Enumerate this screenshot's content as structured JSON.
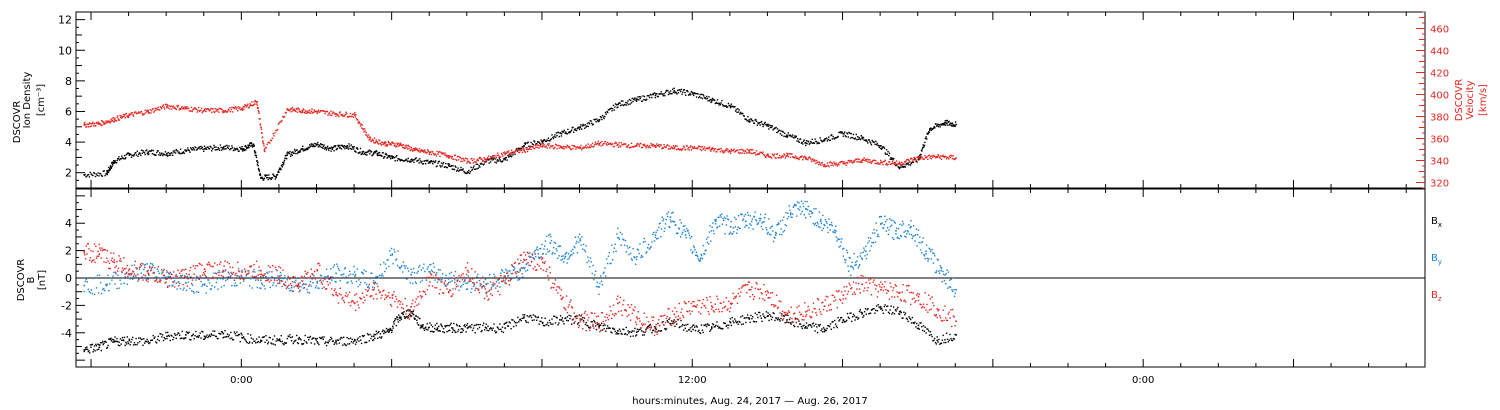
{
  "chart_data": [
    {
      "type": "scatter",
      "panel": "top",
      "ylabel_lines": [
        "DSCOVR",
        "Ion Density",
        "[cm⁻³]"
      ],
      "y2label_lines": [
        "DSCOVR",
        "Velocity",
        "[km/s]"
      ],
      "ylim": [
        1,
        12.5
      ],
      "y2lim": [
        315,
        475
      ],
      "yticks": [
        2,
        4,
        6,
        8,
        10,
        12
      ],
      "y2ticks": [
        320,
        340,
        360,
        380,
        400,
        420,
        440,
        460
      ],
      "series": [
        {
          "color": "#000000",
          "axis": "left",
          "points": [
            [
              -4.2,
              1.9
            ],
            [
              -3.6,
              2.0
            ],
            [
              -3.4,
              2.8
            ],
            [
              -3.0,
              3.2
            ],
            [
              -2.5,
              3.4
            ],
            [
              -2.0,
              3.3
            ],
            [
              -1.5,
              3.5
            ],
            [
              -1.0,
              3.6
            ],
            [
              -0.5,
              3.7
            ],
            [
              0.0,
              3.6
            ],
            [
              0.3,
              3.9
            ],
            [
              0.5,
              1.7
            ],
            [
              0.9,
              1.8
            ],
            [
              1.2,
              3.2
            ],
            [
              1.6,
              3.6
            ],
            [
              2.0,
              3.9
            ],
            [
              2.4,
              3.6
            ],
            [
              2.8,
              3.8
            ],
            [
              3.2,
              3.4
            ],
            [
              3.6,
              3.3
            ],
            [
              4.0,
              3.0
            ],
            [
              4.5,
              2.9
            ],
            [
              5.0,
              2.7
            ],
            [
              5.5,
              2.5
            ],
            [
              6.0,
              2.1
            ],
            [
              6.5,
              2.8
            ],
            [
              7.0,
              2.9
            ],
            [
              7.5,
              3.8
            ],
            [
              8.0,
              4.1
            ],
            [
              8.5,
              4.6
            ],
            [
              9.0,
              5.0
            ],
            [
              9.5,
              5.5
            ],
            [
              10.0,
              6.5
            ],
            [
              10.5,
              6.8
            ],
            [
              11.0,
              7.1
            ],
            [
              11.5,
              7.4
            ],
            [
              12.0,
              7.2
            ],
            [
              12.5,
              6.8
            ],
            [
              13.0,
              6.4
            ],
            [
              13.5,
              5.5
            ],
            [
              14.0,
              5.1
            ],
            [
              14.5,
              4.5
            ],
            [
              15.0,
              4.0
            ],
            [
              15.5,
              4.2
            ],
            [
              16.0,
              4.6
            ],
            [
              16.5,
              4.3
            ],
            [
              17.0,
              3.8
            ],
            [
              17.5,
              2.4
            ],
            [
              18.0,
              2.9
            ],
            [
              18.3,
              4.9
            ],
            [
              18.7,
              5.3
            ],
            [
              19.0,
              5.2
            ]
          ]
        },
        {
          "color": "#e8251f",
          "axis": "right",
          "points": [
            [
              -4.2,
              373
            ],
            [
              -3.8,
              374
            ],
            [
              -3.4,
              378
            ],
            [
              -3.0,
              382
            ],
            [
              -2.5,
              385
            ],
            [
              -2.0,
              390
            ],
            [
              -1.5,
              388
            ],
            [
              -1.0,
              386
            ],
            [
              -0.5,
              386
            ],
            [
              0.0,
              388
            ],
            [
              0.4,
              394
            ],
            [
              0.6,
              349
            ],
            [
              1.2,
              387
            ],
            [
              1.6,
              386
            ],
            [
              2.0,
              385
            ],
            [
              2.5,
              383
            ],
            [
              3.0,
              382
            ],
            [
              3.4,
              360
            ],
            [
              3.8,
              356
            ],
            [
              4.2,
              355
            ],
            [
              4.6,
              350
            ],
            [
              5.0,
              348
            ],
            [
              5.5,
              345
            ],
            [
              6.0,
              340
            ],
            [
              6.5,
              342
            ],
            [
              7.0,
              347
            ],
            [
              7.5,
              350
            ],
            [
              8.0,
              354
            ],
            [
              8.5,
              353
            ],
            [
              9.0,
              352
            ],
            [
              9.5,
              356
            ],
            [
              10.0,
              355
            ],
            [
              10.5,
              354
            ],
            [
              11.0,
              354
            ],
            [
              11.5,
              352
            ],
            [
              12.0,
              352
            ],
            [
              12.5,
              351
            ],
            [
              13.0,
              349
            ],
            [
              13.5,
              349
            ],
            [
              14.0,
              345
            ],
            [
              14.5,
              345
            ],
            [
              15.0,
              343
            ],
            [
              15.5,
              337
            ],
            [
              16.0,
              338
            ],
            [
              16.5,
              341
            ],
            [
              17.0,
              339
            ],
            [
              17.5,
              338
            ],
            [
              18.0,
              343
            ],
            [
              18.5,
              344
            ],
            [
              19.0,
              343
            ]
          ]
        }
      ]
    },
    {
      "type": "scatter",
      "panel": "bottom",
      "ylabel_lines": [
        "DSCOVR",
        "B",
        "[nT]"
      ],
      "xlabel": "hours:minutes, Aug. 24, 2017 — Aug. 26, 2017",
      "x_tick_labels": [
        {
          "x": 0,
          "label": "0:00"
        },
        {
          "x": 12,
          "label": "12:00"
        },
        {
          "x": 24,
          "label": "0:00"
        }
      ],
      "xlim": [
        -4.4,
        31.5
      ],
      "ylim": [
        -6.5,
        6.5
      ],
      "yticks": [
        -4,
        -2,
        0,
        2,
        4
      ],
      "zero_line": true,
      "legend_placement": "right",
      "series": [
        {
          "name": "B",
          "subscript": "x",
          "color": "#000000",
          "points": [
            [
              -4.2,
              -5.2
            ],
            [
              -3.8,
              -5.0
            ],
            [
              -3.4,
              -4.6
            ],
            [
              -3.0,
              -4.5
            ],
            [
              -2.5,
              -4.6
            ],
            [
              -2.0,
              -4.2
            ],
            [
              -1.5,
              -4.1
            ],
            [
              -1.0,
              -4.2
            ],
            [
              -0.5,
              -4.0
            ],
            [
              0.0,
              -4.3
            ],
            [
              0.5,
              -4.5
            ],
            [
              1.0,
              -4.5
            ],
            [
              1.5,
              -4.4
            ],
            [
              2.0,
              -4.6
            ],
            [
              2.5,
              -4.6
            ],
            [
              3.0,
              -4.5
            ],
            [
              3.5,
              -4.2
            ],
            [
              3.9,
              -3.9
            ],
            [
              4.2,
              -2.8
            ],
            [
              4.5,
              -2.4
            ],
            [
              4.8,
              -3.5
            ],
            [
              5.2,
              -3.6
            ],
            [
              5.6,
              -3.6
            ],
            [
              6.0,
              -3.6
            ],
            [
              6.5,
              -3.6
            ],
            [
              7.0,
              -3.6
            ],
            [
              7.5,
              -2.8
            ],
            [
              8.0,
              -3.2
            ],
            [
              8.5,
              -3.0
            ],
            [
              9.0,
              -3.0
            ],
            [
              9.5,
              -3.5
            ],
            [
              10.0,
              -3.8
            ],
            [
              10.5,
              -3.9
            ],
            [
              11.0,
              -3.6
            ],
            [
              11.5,
              -3.2
            ],
            [
              12.0,
              -3.7
            ],
            [
              12.5,
              -3.6
            ],
            [
              13.0,
              -3.2
            ],
            [
              13.5,
              -2.9
            ],
            [
              14.0,
              -2.7
            ],
            [
              14.5,
              -3.0
            ],
            [
              15.0,
              -3.5
            ],
            [
              15.5,
              -3.7
            ],
            [
              16.0,
              -3.0
            ],
            [
              16.5,
              -2.5
            ],
            [
              17.0,
              -2.2
            ],
            [
              17.5,
              -2.4
            ],
            [
              18.0,
              -3.4
            ],
            [
              18.5,
              -4.5
            ],
            [
              19.0,
              -4.1
            ]
          ]
        },
        {
          "name": "B",
          "subscript": "y",
          "color": "#1a82d6",
          "points": [
            [
              -4.2,
              -0.5
            ],
            [
              -3.6,
              -0.4
            ],
            [
              -3.0,
              0.3
            ],
            [
              -2.5,
              0.6
            ],
            [
              -2.0,
              0.1
            ],
            [
              -1.5,
              -0.3
            ],
            [
              -1.0,
              -0.4
            ],
            [
              -0.5,
              0.0
            ],
            [
              0.0,
              0.1
            ],
            [
              0.5,
              -0.1
            ],
            [
              1.0,
              -0.1
            ],
            [
              1.5,
              -0.4
            ],
            [
              2.0,
              -0.3
            ],
            [
              2.5,
              0.4
            ],
            [
              3.0,
              0.2
            ],
            [
              3.5,
              -0.3
            ],
            [
              4.0,
              1.8
            ],
            [
              4.5,
              0.3
            ],
            [
              5.0,
              0.5
            ],
            [
              5.5,
              0.0
            ],
            [
              6.0,
              -0.3
            ],
            [
              6.5,
              -0.4
            ],
            [
              7.0,
              0.2
            ],
            [
              7.4,
              0.6
            ],
            [
              7.8,
              1.8
            ],
            [
              8.2,
              2.6
            ],
            [
              8.6,
              1.6
            ],
            [
              9.0,
              2.8
            ],
            [
              9.5,
              -0.6
            ],
            [
              10.0,
              3.0
            ],
            [
              10.5,
              1.6
            ],
            [
              11.0,
              3.2
            ],
            [
              11.4,
              4.5
            ],
            [
              11.8,
              3.2
            ],
            [
              12.2,
              1.5
            ],
            [
              12.6,
              4.2
            ],
            [
              13.0,
              3.8
            ],
            [
              13.4,
              4.2
            ],
            [
              13.8,
              4.4
            ],
            [
              14.2,
              3.2
            ],
            [
              14.6,
              4.8
            ],
            [
              15.0,
              5.1
            ],
            [
              15.4,
              4.2
            ],
            [
              15.8,
              3.5
            ],
            [
              16.2,
              0.9
            ],
            [
              16.6,
              2.0
            ],
            [
              17.0,
              4.0
            ],
            [
              17.4,
              3.5
            ],
            [
              17.8,
              3.8
            ],
            [
              18.2,
              2.0
            ],
            [
              18.6,
              0.6
            ],
            [
              19.0,
              -0.8
            ]
          ]
        },
        {
          "name": "B",
          "subscript": "z",
          "color": "#e8251f",
          "points": [
            [
              -4.2,
              2.0
            ],
            [
              -3.8,
              1.8
            ],
            [
              -3.4,
              1.2
            ],
            [
              -3.0,
              0.7
            ],
            [
              -2.5,
              0.4
            ],
            [
              -2.0,
              0.0
            ],
            [
              -1.5,
              0.1
            ],
            [
              -1.0,
              0.7
            ],
            [
              -0.5,
              0.6
            ],
            [
              0.0,
              0.5
            ],
            [
              0.5,
              0.6
            ],
            [
              1.0,
              0.2
            ],
            [
              1.5,
              -0.5
            ],
            [
              2.0,
              0.6
            ],
            [
              2.5,
              -1.0
            ],
            [
              3.0,
              -1.8
            ],
            [
              3.5,
              -0.8
            ],
            [
              4.0,
              -1.4
            ],
            [
              4.5,
              -2.5
            ],
            [
              5.0,
              0.1
            ],
            [
              5.5,
              -1.0
            ],
            [
              6.0,
              0.6
            ],
            [
              6.5,
              -1.0
            ],
            [
              7.0,
              -0.3
            ],
            [
              7.5,
              1.4
            ],
            [
              8.0,
              1.2
            ],
            [
              8.5,
              -1.5
            ],
            [
              9.0,
              -3.0
            ],
            [
              9.5,
              -3.3
            ],
            [
              10.0,
              -1.8
            ],
            [
              10.5,
              -2.8
            ],
            [
              11.0,
              -3.5
            ],
            [
              11.5,
              -2.6
            ],
            [
              12.0,
              -2.0
            ],
            [
              12.5,
              -2.0
            ],
            [
              13.0,
              -1.8
            ],
            [
              13.5,
              -0.8
            ],
            [
              14.0,
              -1.0
            ],
            [
              14.5,
              -2.6
            ],
            [
              15.0,
              -2.4
            ],
            [
              15.5,
              -2.0
            ],
            [
              16.0,
              -1.2
            ],
            [
              16.5,
              -0.4
            ],
            [
              17.0,
              -0.8
            ],
            [
              17.5,
              -1.0
            ],
            [
              18.0,
              -1.3
            ],
            [
              18.5,
              -2.2
            ],
            [
              19.0,
              -3.1
            ]
          ]
        }
      ]
    }
  ]
}
